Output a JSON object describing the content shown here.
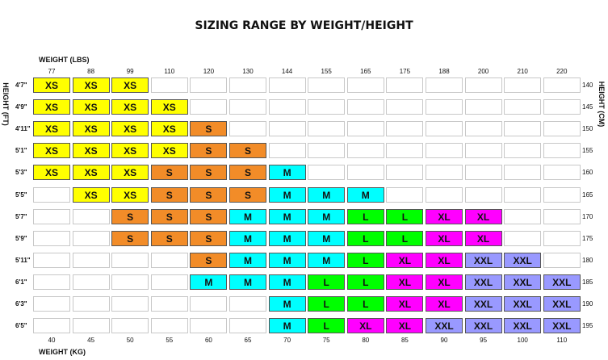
{
  "chart_data": {
    "type": "table",
    "title": "SIZING RANGE BY WEIGHT/HEIGHT",
    "x_top_label": "WEIGHT (LBS)",
    "x_bottom_label": "WEIGHT (KG)",
    "y_left_label": "HEIGHT (FT)",
    "y_right_label": "HEIGHT (CM)",
    "weights_lbs": [
      "77",
      "88",
      "99",
      "110",
      "120",
      "130",
      "144",
      "155",
      "165",
      "175",
      "188",
      "200",
      "210",
      "220"
    ],
    "weights_kg": [
      "40",
      "45",
      "50",
      "55",
      "60",
      "65",
      "70",
      "75",
      "80",
      "85",
      "90",
      "95",
      "100",
      "110"
    ],
    "heights_ft": [
      "4'7\"",
      "4'9\"",
      "4'11\"",
      "5'1\"",
      "5'3\"",
      "5'5\"",
      "5'7\"",
      "5'9\"",
      "5'11\"",
      "6'1\"",
      "6'3\"",
      "6'5\""
    ],
    "heights_cm": [
      "140",
      "145",
      "150",
      "155",
      "160",
      "165",
      "170",
      "175",
      "180",
      "185",
      "190",
      "195"
    ],
    "rows": [
      [
        "XS",
        "XS",
        "XS",
        "",
        "",
        "",
        "",
        "",
        "",
        "",
        "",
        "",
        "",
        ""
      ],
      [
        "XS",
        "XS",
        "XS",
        "XS",
        "",
        "",
        "",
        "",
        "",
        "",
        "",
        "",
        "",
        ""
      ],
      [
        "XS",
        "XS",
        "XS",
        "XS",
        "S",
        "",
        "",
        "",
        "",
        "",
        "",
        "",
        "",
        ""
      ],
      [
        "XS",
        "XS",
        "XS",
        "XS",
        "S",
        "S",
        "",
        "",
        "",
        "",
        "",
        "",
        "",
        ""
      ],
      [
        "XS",
        "XS",
        "XS",
        "S",
        "S",
        "S",
        "M",
        "",
        "",
        "",
        "",
        "",
        "",
        ""
      ],
      [
        "",
        "XS",
        "XS",
        "S",
        "S",
        "S",
        "M",
        "M",
        "M",
        "",
        "",
        "",
        "",
        ""
      ],
      [
        "",
        "",
        "S",
        "S",
        "S",
        "M",
        "M",
        "M",
        "L",
        "L",
        "XL",
        "XL",
        "",
        ""
      ],
      [
        "",
        "",
        "S",
        "S",
        "S",
        "M",
        "M",
        "M",
        "L",
        "L",
        "XL",
        "XL",
        "",
        ""
      ],
      [
        "",
        "",
        "",
        "",
        "S",
        "M",
        "M",
        "M",
        "L",
        "XL",
        "XL",
        "XXL",
        "XXL",
        ""
      ],
      [
        "",
        "",
        "",
        "",
        "M",
        "M",
        "M",
        "L",
        "L",
        "XL",
        "XL",
        "XXL",
        "XXL",
        "XXL"
      ],
      [
        "",
        "",
        "",
        "",
        "",
        "",
        "M",
        "L",
        "L",
        "XL",
        "XL",
        "XXL",
        "XXL",
        "XXL"
      ],
      [
        "",
        "",
        "",
        "",
        "",
        "",
        "M",
        "L",
        "XL",
        "XL",
        "XXL",
        "XXL",
        "XXL",
        "XXL"
      ]
    ],
    "size_colors": {
      "XS": "#ffff00",
      "S": "#f28c28",
      "M": "#00ffff",
      "L": "#00ff00",
      "XL": "#ff00ff",
      "XXL": "#9999ff"
    }
  }
}
